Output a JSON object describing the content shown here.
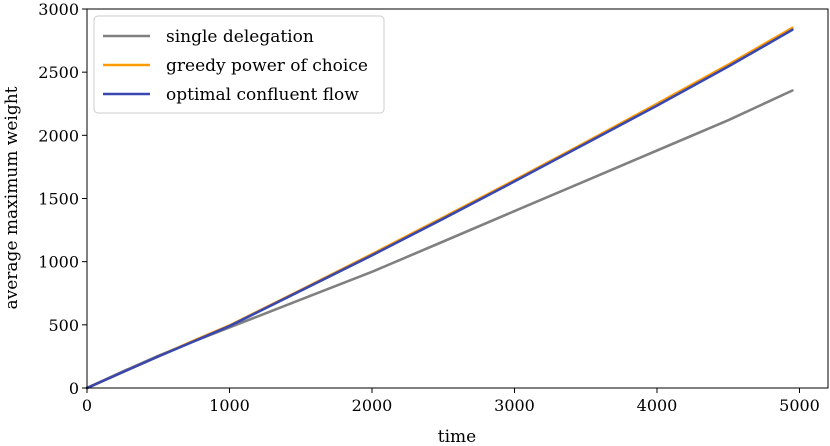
{
  "chart_data": {
    "type": "line",
    "title": "",
    "xlabel": "time",
    "ylabel": "average maximum weight",
    "xlim": [
      0,
      5200
    ],
    "ylim": [
      0,
      3000
    ],
    "xticks": [
      0,
      1000,
      2000,
      3000,
      4000,
      5000
    ],
    "yticks": [
      0,
      500,
      1000,
      1500,
      2000,
      2500,
      3000
    ],
    "xtick_labels": [
      "0",
      "1000",
      "2000",
      "3000",
      "4000",
      "5000"
    ],
    "ytick_labels": [
      "0",
      "500",
      "1000",
      "1500",
      "2000",
      "2500",
      "3000"
    ],
    "grid": false,
    "legend_position": "top-left",
    "series": [
      {
        "name": "single delegation",
        "color": "#808080",
        "x": [
          0,
          250,
          500,
          750,
          1000,
          1500,
          2000,
          2500,
          3000,
          3500,
          4000,
          4500,
          4950
        ],
        "y": [
          0,
          130,
          255,
          370,
          480,
          700,
          920,
          1160,
          1400,
          1640,
          1880,
          2120,
          2355
        ]
      },
      {
        "name": "greedy power of choice",
        "color": "#ff9a00",
        "x": [
          0,
          250,
          500,
          750,
          1000,
          1500,
          2000,
          2500,
          3000,
          3500,
          4000,
          4500,
          4950
        ],
        "y": [
          0,
          125,
          250,
          375,
          495,
          775,
          1060,
          1350,
          1645,
          1945,
          2250,
          2560,
          2850
        ]
      },
      {
        "name": "optimal confluent flow",
        "color": "#3848b0",
        "x": [
          0,
          250,
          500,
          750,
          1000,
          1500,
          2000,
          2500,
          3000,
          3500,
          4000,
          4500,
          4950
        ],
        "y": [
          0,
          125,
          250,
          370,
          490,
          770,
          1050,
          1340,
          1635,
          1935,
          2235,
          2545,
          2835
        ]
      }
    ]
  }
}
